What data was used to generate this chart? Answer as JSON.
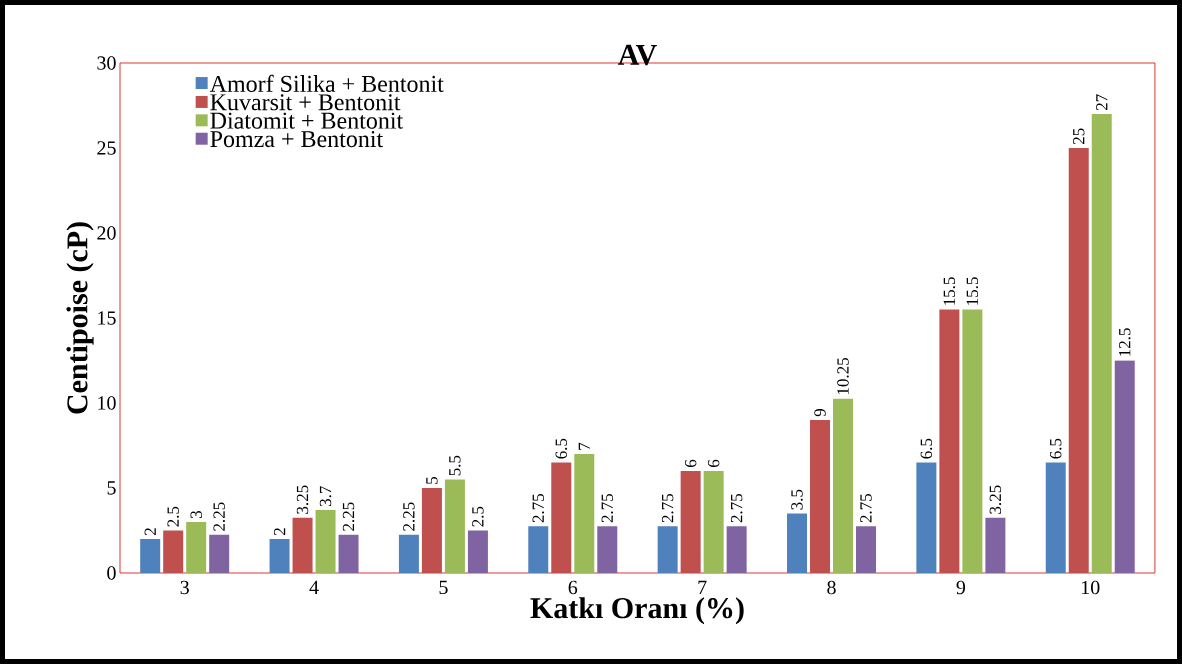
{
  "chart_data": {
    "type": "bar",
    "title": "AV",
    "xlabel": "Katkı Oranı (%)",
    "ylabel": "Centipoise (cP)",
    "categories": [
      "3",
      "4",
      "5",
      "6",
      "7",
      "8",
      "9",
      "10"
    ],
    "series": [
      {
        "name": "Amorf Silika + Bentonit",
        "color": "#4f81bd",
        "values": [
          2,
          2,
          2.25,
          2.75,
          2.75,
          3.5,
          6.5,
          6.5
        ]
      },
      {
        "name": "Kuvarsit + Bentonit",
        "color": "#c0504d",
        "values": [
          2.5,
          3.25,
          5,
          6.5,
          6,
          9,
          15.5,
          25
        ]
      },
      {
        "name": "Diatomit + Bentonit",
        "color": "#9bbb59",
        "values": [
          3,
          3.7,
          5.5,
          7,
          6,
          10.25,
          15.5,
          27
        ]
      },
      {
        "name": "Pomza + Bentonit",
        "color": "#8064a2",
        "values": [
          2.25,
          2.25,
          2.5,
          2.75,
          2.75,
          2.75,
          3.25,
          12.5
        ]
      }
    ],
    "ylim": [
      0,
      30
    ],
    "yticks": [
      0,
      5,
      10,
      15,
      20,
      25,
      30
    ],
    "data_labels": true,
    "legend": "top left"
  }
}
